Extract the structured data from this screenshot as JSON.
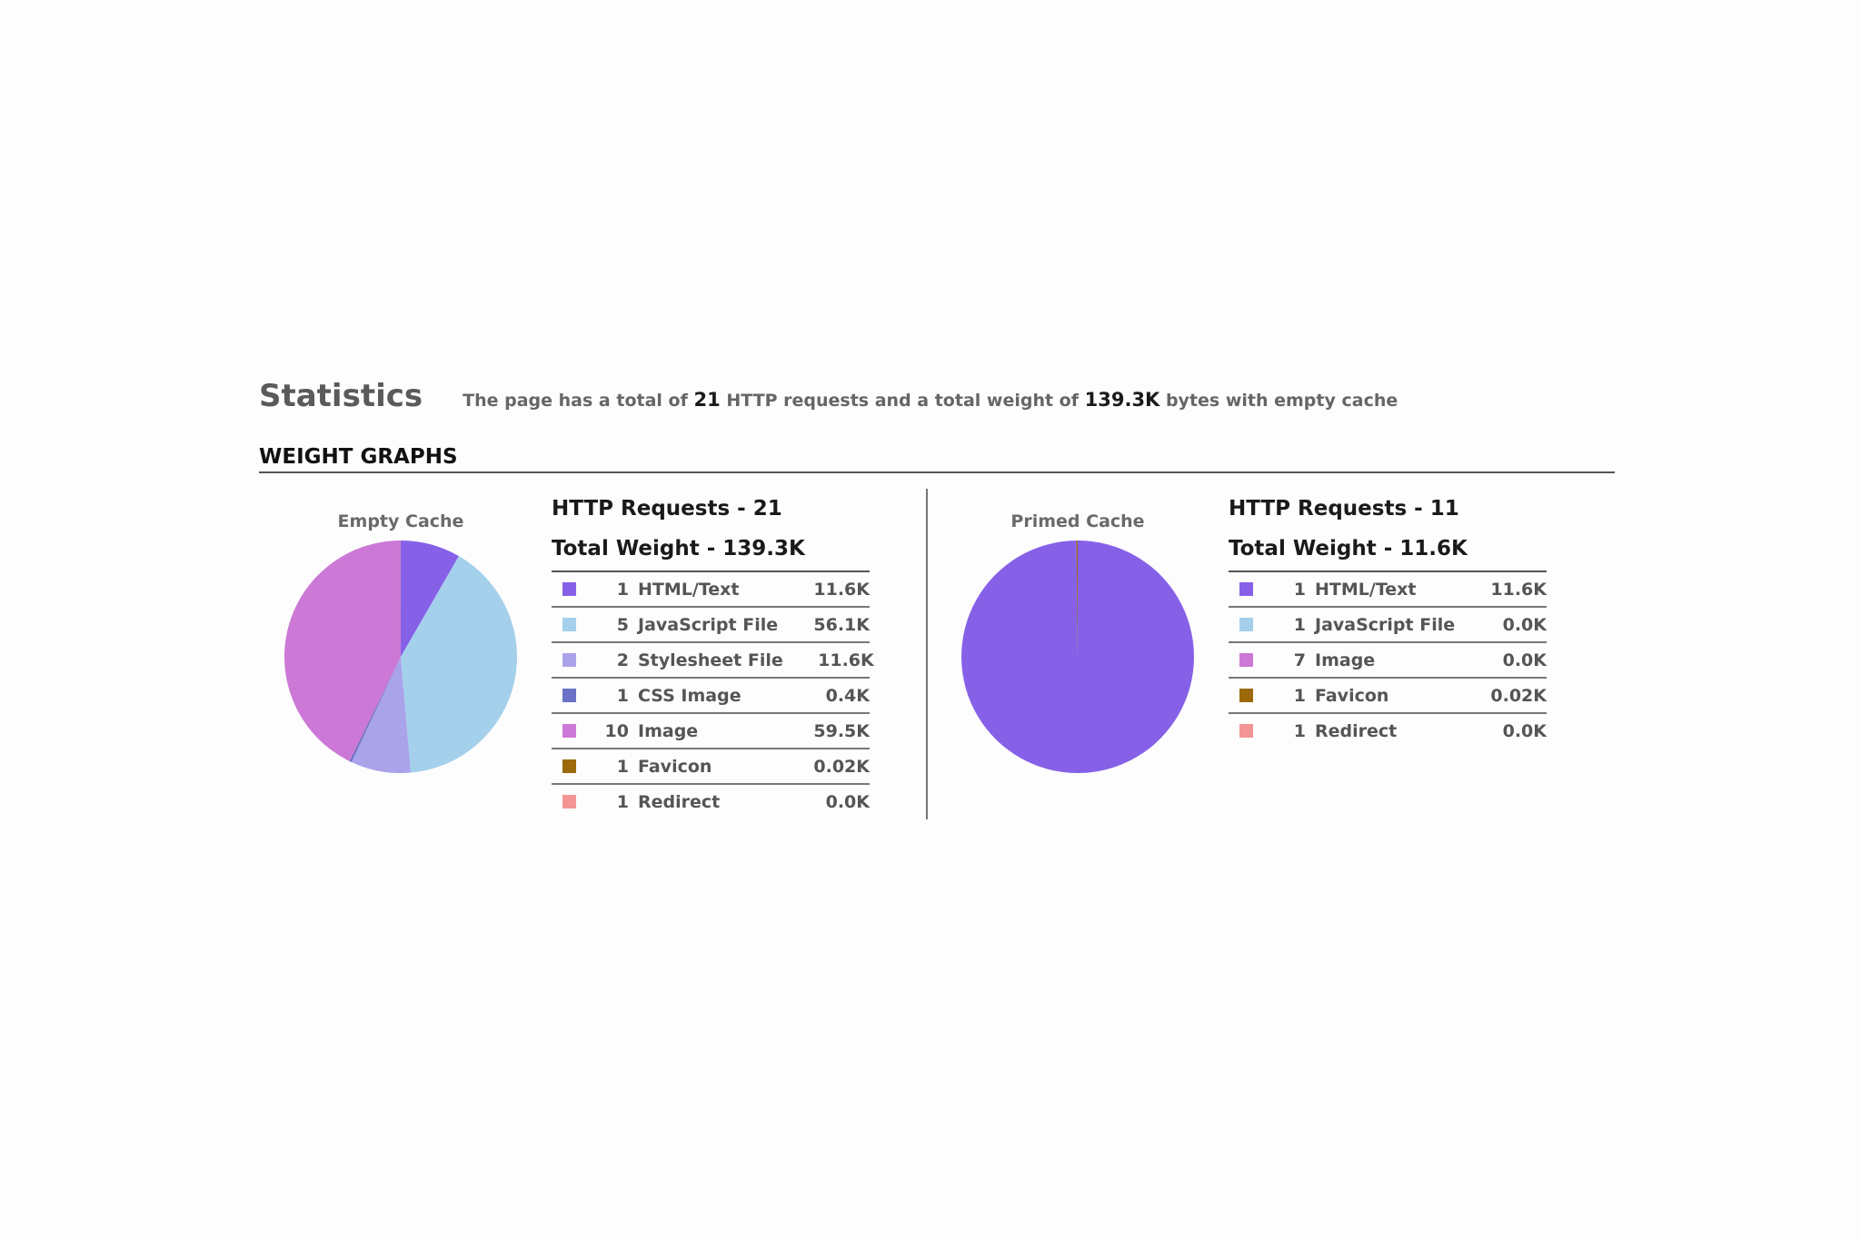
{
  "header": {
    "title": "Statistics",
    "summary_prefix": "The page has a total of",
    "summary_requests": "21",
    "summary_middle": "HTTP requests and a total weight of",
    "summary_weight": "139.3K",
    "summary_suffix": "bytes with empty cache"
  },
  "section": {
    "heading": "WEIGHT GRAPHS"
  },
  "colors": {
    "html_text": "#8661e8",
    "javascript": "#a4d0ec",
    "stylesheet": "#aaa3ea",
    "css_image": "#6b71c4",
    "image": "#cc78d6",
    "favicon": "#9c6a0c",
    "redirect": "#f49494"
  },
  "empty_cache": {
    "pie_title": "Empty Cache",
    "requests_heading": "HTTP Requests - 21",
    "weight_heading": "Total Weight - 139.3K",
    "rows": [
      {
        "count": "1",
        "type": "HTML/Text",
        "size": "11.6K",
        "color": "#8661e8"
      },
      {
        "count": "5",
        "type": "JavaScript File",
        "size": "56.1K",
        "color": "#a4d0ec"
      },
      {
        "count": "2",
        "type": "Stylesheet File",
        "size": "11.6K",
        "color": "#aaa3ea"
      },
      {
        "count": "1",
        "type": "CSS Image",
        "size": "0.4K",
        "color": "#6b71c4"
      },
      {
        "count": "10",
        "type": "Image",
        "size": "59.5K",
        "color": "#cc78d6"
      },
      {
        "count": "1",
        "type": "Favicon",
        "size": "0.02K",
        "color": "#9c6a0c"
      },
      {
        "count": "1",
        "type": "Redirect",
        "size": "0.0K",
        "color": "#f49494"
      }
    ]
  },
  "primed_cache": {
    "pie_title": "Primed Cache",
    "requests_heading": "HTTP Requests - 11",
    "weight_heading": "Total Weight - 11.6K",
    "rows": [
      {
        "count": "1",
        "type": "HTML/Text",
        "size": "11.6K",
        "color": "#8661e8"
      },
      {
        "count": "1",
        "type": "JavaScript File",
        "size": "0.0K",
        "color": "#a4d0ec"
      },
      {
        "count": "7",
        "type": "Image",
        "size": "0.0K",
        "color": "#cc78d6"
      },
      {
        "count": "1",
        "type": "Favicon",
        "size": "0.02K",
        "color": "#9c6a0c"
      },
      {
        "count": "1",
        "type": "Redirect",
        "size": "0.0K",
        "color": "#f49494"
      }
    ]
  },
  "chart_data": [
    {
      "type": "pie",
      "title": "Empty Cache",
      "categories": [
        "HTML/Text",
        "JavaScript File",
        "Stylesheet File",
        "CSS Image",
        "Image",
        "Favicon",
        "Redirect"
      ],
      "values": [
        11.6,
        56.1,
        11.6,
        0.4,
        59.5,
        0.02,
        0.0
      ],
      "colors": [
        "#8661e8",
        "#a4d0ec",
        "#aaa3ea",
        "#6b71c4",
        "#cc78d6",
        "#9c6a0c",
        "#f49494"
      ],
      "legend": "right"
    },
    {
      "type": "pie",
      "title": "Primed Cache",
      "categories": [
        "HTML/Text",
        "JavaScript File",
        "Image",
        "Favicon",
        "Redirect"
      ],
      "values": [
        11.6,
        0.0,
        0.0,
        0.02,
        0.0
      ],
      "colors": [
        "#8661e8",
        "#a4d0ec",
        "#cc78d6",
        "#9c6a0c",
        "#f49494"
      ],
      "legend": "right"
    }
  ]
}
